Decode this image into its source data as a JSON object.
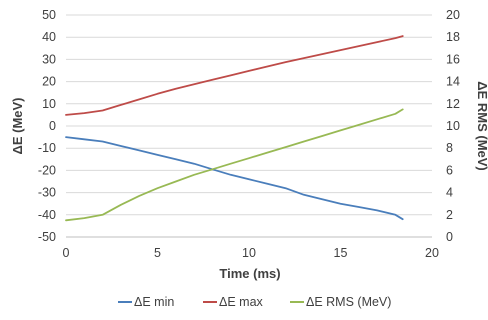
{
  "chart_data": {
    "type": "line",
    "xlabel": "Time (ms)",
    "ylabel": "ΔE (MeV)",
    "y2label": "ΔE RMS (MeV)",
    "xlim": [
      0,
      20
    ],
    "ylim": [
      -50,
      50
    ],
    "y2lim": [
      0,
      20
    ],
    "xticks": [
      "0",
      "5",
      "10",
      "15",
      "20"
    ],
    "yticks": [
      "50",
      "40",
      "30",
      "20",
      "10",
      "0",
      "-10",
      "-20",
      "-30",
      "-40",
      "-50"
    ],
    "y2ticks": [
      "20",
      "18",
      "16",
      "14",
      "12",
      "10",
      "8",
      "6",
      "4",
      "2",
      "0"
    ],
    "grid": "horizontal",
    "legend": "bottom",
    "series": [
      {
        "name": "ΔE min",
        "axis": "left",
        "color": "#4a7ebb",
        "x": [
          0,
          1,
          2,
          3,
          4,
          5,
          6,
          7,
          8,
          9,
          10,
          11,
          12,
          13,
          14,
          15,
          16,
          17,
          18,
          18.4
        ],
        "values": [
          -5,
          -6,
          -7,
          -9,
          -11,
          -13,
          -15,
          -17,
          -19.5,
          -22,
          -24,
          -26,
          -28,
          -31,
          -33,
          -35,
          -36.5,
          -38,
          -40,
          -42
        ]
      },
      {
        "name": "ΔE max",
        "axis": "left",
        "color": "#be4b48",
        "x": [
          0,
          1,
          2,
          3,
          4,
          5,
          6,
          7,
          8,
          9,
          10,
          11,
          12,
          13,
          14,
          15,
          16,
          17,
          18,
          18.4
        ],
        "values": [
          5,
          5.8,
          7,
          9.5,
          12,
          14.5,
          16.8,
          18.8,
          20.8,
          22.8,
          24.8,
          26.8,
          28.8,
          30.6,
          32.4,
          34.2,
          36,
          37.8,
          39.6,
          40.5
        ]
      },
      {
        "name": "ΔE RMS (MeV)",
        "axis": "right",
        "color": "#98b954",
        "x": [
          0,
          1,
          2,
          3,
          4,
          5,
          6,
          7,
          8,
          9,
          10,
          11,
          12,
          13,
          14,
          15,
          16,
          17,
          18,
          18.4
        ],
        "values": [
          1.5,
          1.7,
          2.0,
          2.9,
          3.7,
          4.4,
          5.0,
          5.6,
          6.1,
          6.6,
          7.1,
          7.6,
          8.1,
          8.6,
          9.1,
          9.6,
          10.1,
          10.6,
          11.1,
          11.5
        ]
      }
    ]
  }
}
